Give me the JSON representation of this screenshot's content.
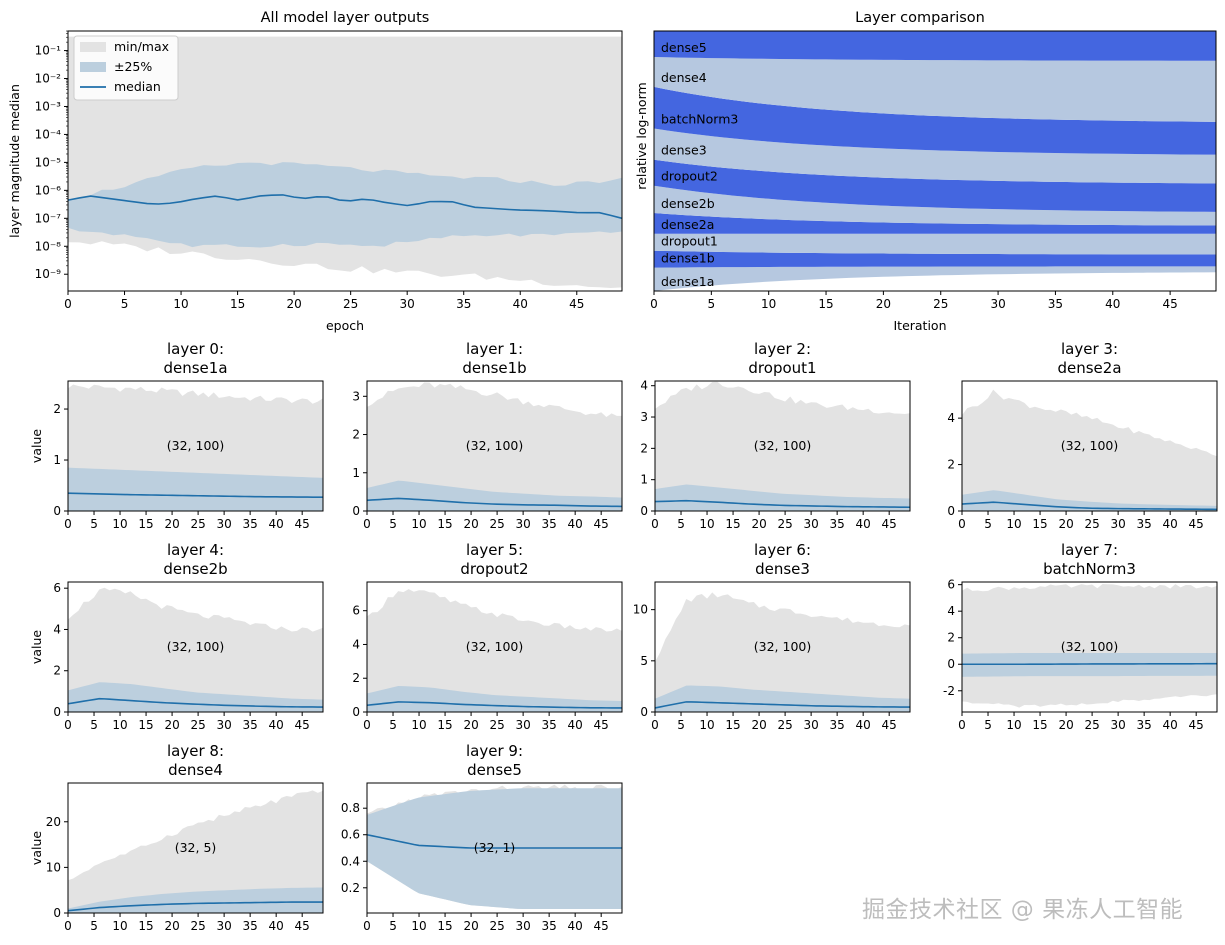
{
  "colors": {
    "minmax": "#e3e3e3",
    "quartile": "#bccfde",
    "median": "#1f6faa",
    "band_dark": "#4466e0",
    "band_light": "#b6c8e0"
  },
  "watermark": "掘金技术社区 @ 果冻人工智能",
  "chart_data": [
    {
      "id": "overview",
      "type": "area",
      "title": "All model layer outputs",
      "xlabel": "epoch",
      "ylabel": "layer magnitude median",
      "yscale": "log",
      "xlim": [
        0,
        49
      ],
      "ylim_exp": [
        -9.6,
        -0.3
      ],
      "xticks": [
        0,
        5,
        10,
        15,
        20,
        25,
        30,
        35,
        40,
        45
      ],
      "yticks": [
        {
          "exp": -9,
          "label": "10⁻⁹"
        },
        {
          "exp": -8,
          "label": "10⁻⁸"
        },
        {
          "exp": -7,
          "label": "10⁻⁷"
        },
        {
          "exp": -6,
          "label": "10⁻⁶"
        },
        {
          "exp": -5,
          "label": "10⁻⁵"
        },
        {
          "exp": -4,
          "label": "10⁻⁴"
        },
        {
          "exp": -3,
          "label": "10⁻³"
        },
        {
          "exp": -2,
          "label": "10⁻²"
        },
        {
          "exp": -1,
          "label": "10⁻¹"
        }
      ],
      "legend": [
        {
          "label": "min/max",
          "kind": "minmax"
        },
        {
          "label": "±25%",
          "kind": "quartile"
        },
        {
          "label": "median",
          "kind": "median"
        }
      ],
      "max_exp": [
        -0.5,
        -0.5,
        -0.5,
        -0.5,
        -0.5
      ],
      "min_exp": [
        -7.8,
        -8.3,
        -8.8,
        -9.1,
        -9.5
      ],
      "q_hi_exp": [
        -6.3,
        -5.8,
        -5.2,
        -5.0,
        -5.1,
        -5.3,
        -5.5,
        -5.6,
        -5.8,
        -5.6
      ],
      "q_lo_exp": [
        -7.4,
        -7.6,
        -8.0,
        -8.0,
        -7.9,
        -8.0,
        -7.7,
        -7.6,
        -7.6,
        -7.5
      ],
      "median_exp": [
        -6.35,
        -6.2,
        -6.3,
        -6.4,
        -6.5,
        -6.45,
        -6.3,
        -6.2,
        -6.35,
        -6.2,
        -6.15,
        -6.3,
        -6.2,
        -6.4,
        -6.3,
        -6.45,
        -6.55,
        -6.4,
        -6.4,
        -6.6,
        -6.65,
        -6.7,
        -6.72,
        -6.75,
        -6.8,
        -6.8,
        -7.0
      ]
    },
    {
      "id": "comparison",
      "type": "area",
      "title": "Layer comparison",
      "xlabel": "Iteration",
      "ylabel": "relative log-norm",
      "xlim": [
        0,
        49
      ],
      "xticks": [
        0,
        5,
        10,
        15,
        20,
        25,
        30,
        35,
        40,
        45
      ],
      "bands": [
        {
          "label": "dense1a",
          "start": 0.0,
          "end": 0.075
        },
        {
          "label": "dense1b",
          "start": 0.09,
          "end": 0.095
        },
        {
          "label": "dropout1",
          "start": 0.155,
          "end": 0.14
        },
        {
          "label": "dense2a",
          "start": 0.22,
          "end": 0.22
        },
        {
          "label": "dense2b",
          "start": 0.3,
          "end": 0.25
        },
        {
          "label": "dropout2",
          "start": 0.405,
          "end": 0.3
        },
        {
          "label": "dense3",
          "start": 0.505,
          "end": 0.41
        },
        {
          "label": "batchNorm3",
          "start": 0.625,
          "end": 0.52
        },
        {
          "label": "dense4",
          "start": 0.785,
          "end": 0.645
        },
        {
          "label": "dense5",
          "start": 0.9,
          "end": 0.885
        }
      ]
    },
    {
      "id": "layer0",
      "type": "area",
      "title_line1": "layer 0:",
      "title_line2": "dense1a",
      "annotation": "(32, 100)",
      "ylabel": "value",
      "ylim": [
        0,
        2.55
      ],
      "yticks": [
        0,
        1,
        2
      ],
      "xlim": [
        0,
        49
      ],
      "xticks": [
        0,
        5,
        10,
        15,
        20,
        25,
        30,
        35,
        40,
        45
      ],
      "max": [
        2.45,
        2.4,
        2.3,
        2.2,
        2.15
      ],
      "min": [
        0,
        0,
        0,
        0,
        0
      ],
      "q_hi": [
        0.85,
        0.8,
        0.75,
        0.7,
        0.65
      ],
      "q_lo": [
        0,
        0,
        0,
        0,
        0
      ],
      "median": [
        0.35,
        0.32,
        0.3,
        0.28,
        0.27
      ]
    },
    {
      "id": "layer1",
      "type": "area",
      "title_line1": "layer 1:",
      "title_line2": "dense1b",
      "annotation": "(32, 100)",
      "ylim": [
        0,
        3.4
      ],
      "yticks": [
        0,
        1,
        2,
        3
      ],
      "xlim": [
        0,
        49
      ],
      "xticks": [
        0,
        5,
        10,
        15,
        20,
        25,
        30,
        35,
        40,
        45
      ],
      "max": [
        2.8,
        3.2,
        3.3,
        3.2,
        3.05,
        2.85,
        2.7,
        2.55,
        2.45
      ],
      "min": [
        0,
        0,
        0,
        0,
        0
      ],
      "q_hi": [
        0.6,
        0.8,
        0.7,
        0.6,
        0.5,
        0.45,
        0.4,
        0.38,
        0.35
      ],
      "q_lo": [
        0,
        0,
        0,
        0,
        0
      ],
      "median": [
        0.28,
        0.33,
        0.28,
        0.22,
        0.18,
        0.16,
        0.15,
        0.13,
        0.12
      ]
    },
    {
      "id": "layer2",
      "type": "area",
      "title_line1": "layer 2:",
      "title_line2": "dropout1",
      "annotation": "(32, 100)",
      "ylim": [
        0,
        4.15
      ],
      "yticks": [
        0,
        1,
        2,
        3,
        4
      ],
      "xlim": [
        0,
        49
      ],
      "xticks": [
        0,
        5,
        10,
        15,
        20,
        25,
        30,
        35,
        40,
        45
      ],
      "max": [
        3.3,
        3.9,
        4.1,
        3.9,
        3.6,
        3.4,
        3.3,
        3.2,
        3.1
      ],
      "min": [
        0,
        0,
        0,
        0,
        0
      ],
      "q_hi": [
        0.7,
        0.85,
        0.75,
        0.65,
        0.55,
        0.5,
        0.45,
        0.42,
        0.4
      ],
      "q_lo": [
        0,
        0,
        0,
        0,
        0
      ],
      "median": [
        0.3,
        0.33,
        0.28,
        0.22,
        0.18,
        0.16,
        0.14,
        0.13,
        0.12
      ]
    },
    {
      "id": "layer3",
      "type": "area",
      "title_line1": "layer 3:",
      "title_line2": "dense2a",
      "annotation": "(32, 100)",
      "ylim": [
        0,
        5.6
      ],
      "yticks": [
        0,
        2,
        4
      ],
      "xlim": [
        0,
        49
      ],
      "xticks": [
        0,
        5,
        10,
        15,
        20,
        25,
        30,
        35,
        40,
        45
      ],
      "max": [
        4.2,
        5.1,
        4.6,
        4.3,
        4.0,
        3.6,
        3.2,
        2.8,
        2.4
      ],
      "min": [
        0,
        0,
        0,
        0,
        0
      ],
      "q_hi": [
        0.7,
        0.9,
        0.7,
        0.5,
        0.4,
        0.32,
        0.28,
        0.25,
        0.22
      ],
      "q_lo": [
        0,
        0,
        0,
        0,
        0
      ],
      "median": [
        0.3,
        0.38,
        0.28,
        0.18,
        0.12,
        0.1,
        0.09,
        0.08,
        0.07
      ]
    },
    {
      "id": "layer4",
      "type": "area",
      "title_line1": "layer 4:",
      "title_line2": "dense2b",
      "annotation": "(32, 100)",
      "ylabel": "value",
      "ylim": [
        0,
        6.3
      ],
      "yticks": [
        0,
        2,
        4,
        6
      ],
      "xlim": [
        0,
        49
      ],
      "xticks": [
        0,
        5,
        10,
        15,
        20,
        25,
        30,
        35,
        40,
        45
      ],
      "max": [
        4.6,
        5.9,
        5.7,
        5.1,
        4.7,
        4.5,
        4.2,
        4.0,
        4.0
      ],
      "min": [
        0,
        0,
        0,
        0,
        0
      ],
      "q_hi": [
        1.05,
        1.45,
        1.35,
        1.15,
        0.95,
        0.85,
        0.75,
        0.65,
        0.6
      ],
      "q_lo": [
        0,
        0,
        0,
        0,
        0
      ],
      "median": [
        0.4,
        0.65,
        0.55,
        0.45,
        0.38,
        0.32,
        0.28,
        0.25,
        0.24
      ]
    },
    {
      "id": "layer5",
      "type": "area",
      "title_line1": "layer 5:",
      "title_line2": "dropout2",
      "annotation": "(32, 100)",
      "ylim": [
        0,
        7.7
      ],
      "yticks": [
        0,
        2,
        4,
        6
      ],
      "xlim": [
        0,
        49
      ],
      "xticks": [
        0,
        5,
        10,
        15,
        20,
        25,
        30,
        35,
        40,
        45
      ],
      "max": [
        5.5,
        7.3,
        7.0,
        6.3,
        5.8,
        5.4,
        5.1,
        4.9,
        4.8
      ],
      "min": [
        0,
        0,
        0,
        0,
        0
      ],
      "q_hi": [
        1.1,
        1.55,
        1.45,
        1.2,
        1.0,
        0.9,
        0.8,
        0.7,
        0.65
      ],
      "q_lo": [
        0,
        0,
        0,
        0,
        0
      ],
      "median": [
        0.4,
        0.6,
        0.55,
        0.45,
        0.38,
        0.32,
        0.28,
        0.25,
        0.24
      ]
    },
    {
      "id": "layer6",
      "type": "area",
      "title_line1": "layer 6:",
      "title_line2": "dense3",
      "annotation": "(32, 100)",
      "ylim": [
        0,
        12.7
      ],
      "yticks": [
        0,
        5,
        10
      ],
      "xlim": [
        0,
        49
      ],
      "xticks": [
        0,
        5,
        10,
        15,
        20,
        25,
        30,
        35,
        40,
        45
      ],
      "max": [
        5.0,
        11.0,
        11.5,
        10.5,
        10.0,
        9.5,
        9.0,
        8.6,
        8.5
      ],
      "min": [
        0,
        0,
        0,
        0,
        0
      ],
      "q_hi": [
        1.3,
        2.6,
        2.5,
        2.2,
        2.0,
        1.8,
        1.6,
        1.4,
        1.3
      ],
      "q_lo": [
        0,
        0,
        0,
        0,
        0
      ],
      "median": [
        0.4,
        1.0,
        0.9,
        0.8,
        0.7,
        0.6,
        0.55,
        0.5,
        0.48
      ]
    },
    {
      "id": "layer7",
      "type": "area",
      "title_line1": "layer 7:",
      "title_line2": "batchNorm3",
      "annotation": "(32, 100)",
      "ylim": [
        -3.6,
        6.2
      ],
      "yticks": [
        -2,
        0,
        2,
        4,
        6
      ],
      "xlim": [
        0,
        49
      ],
      "xticks": [
        0,
        5,
        10,
        15,
        20,
        25,
        30,
        35,
        40,
        45
      ],
      "max": [
        5.6,
        5.8,
        5.9,
        5.9,
        5.8
      ],
      "min": [
        -2.8,
        -3.2,
        -3.0,
        -2.6,
        -2.3
      ],
      "q_hi": [
        0.8,
        0.85,
        0.85,
        0.85,
        0.85
      ],
      "q_lo": [
        -0.95,
        -0.9,
        -0.9,
        -0.88,
        -0.87
      ],
      "median": [
        0.0,
        0.0,
        0.02,
        0.03,
        0.04
      ]
    },
    {
      "id": "layer8",
      "type": "area",
      "title_line1": "layer 8:",
      "title_line2": "dense4",
      "annotation": "(32, 5)",
      "ylabel": "value",
      "ylim": [
        0,
        28.5
      ],
      "yticks": [
        0,
        10,
        20
      ],
      "xlim": [
        0,
        49
      ],
      "xticks": [
        0,
        5,
        10,
        15,
        20,
        25,
        30,
        35,
        40,
        45
      ],
      "max": [
        7.0,
        11.0,
        13.5,
        16.5,
        19.5,
        21.5,
        23.5,
        25.5,
        26.5
      ],
      "min": [
        0,
        0,
        0,
        0,
        0
      ],
      "q_hi": [
        1.0,
        2.5,
        3.5,
        4.2,
        4.7,
        5.0,
        5.3,
        5.5,
        5.6
      ],
      "q_lo": [
        0,
        0,
        0,
        0,
        0
      ],
      "median": [
        0.5,
        1.2,
        1.6,
        1.9,
        2.1,
        2.2,
        2.3,
        2.4,
        2.4
      ]
    },
    {
      "id": "layer9",
      "type": "area",
      "title_line1": "layer 9:",
      "title_line2": "dense5",
      "annotation": "(32, 1)",
      "ylim": [
        0.01,
        0.99
      ],
      "yticks": [
        0.2,
        0.4,
        0.6,
        0.8
      ],
      "xlim": [
        0,
        49
      ],
      "xticks": [
        0,
        5,
        10,
        15,
        20,
        25,
        30,
        35,
        40,
        45
      ],
      "max": [
        0.75,
        0.88,
        0.93,
        0.95,
        0.95,
        0.95
      ],
      "min": [
        0.4,
        0.16,
        0.07,
        0.04,
        0.04,
        0.04
      ],
      "q_hi": [
        0.75,
        0.88,
        0.93,
        0.95,
        0.95,
        0.95
      ],
      "q_lo": [
        0.4,
        0.16,
        0.07,
        0.04,
        0.04,
        0.04
      ],
      "median": [
        0.6,
        0.52,
        0.5,
        0.5,
        0.5,
        0.5
      ]
    }
  ]
}
